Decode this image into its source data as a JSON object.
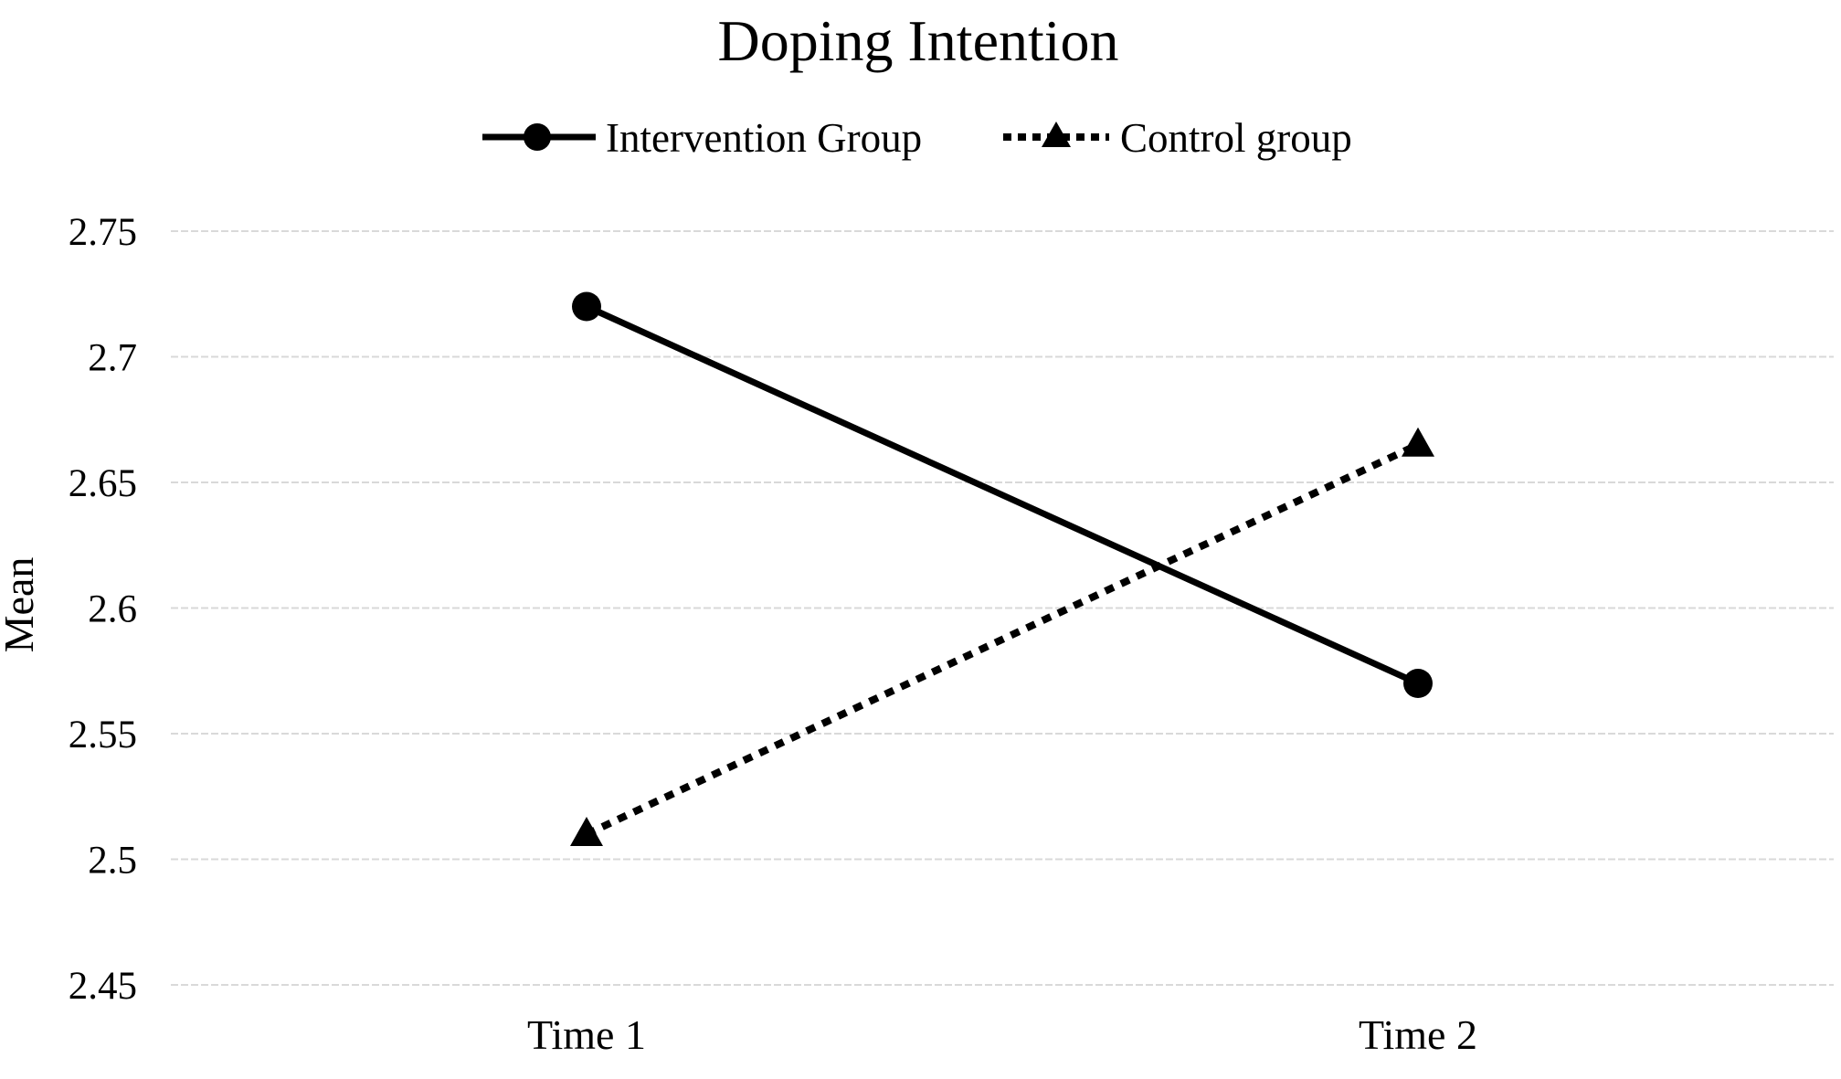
{
  "chart_data": {
    "type": "line",
    "title": "Doping Intention",
    "xlabel": "",
    "ylabel": "Mean",
    "categories": [
      "Time 1",
      "Time 2"
    ],
    "series": [
      {
        "name": "Intervention Group",
        "values": [
          2.72,
          2.57
        ],
        "line_style": "solid",
        "marker": "circle",
        "color": "#000000"
      },
      {
        "name": "Control group",
        "values": [
          2.51,
          2.665
        ],
        "line_style": "dotted",
        "marker": "triangle",
        "color": "#000000"
      }
    ],
    "y_tick_labels": [
      "2.75",
      "2.7",
      "2.65",
      "2.6",
      "2.55",
      "2.5",
      "2.45"
    ],
    "ylim": [
      2.45,
      2.75
    ],
    "grid": "horizontal dashed gridlines at every y tick",
    "legend_position": "top",
    "colors": {
      "foreground": "#000000",
      "gridline": "#d9d9d9",
      "background": "#ffffff"
    }
  }
}
